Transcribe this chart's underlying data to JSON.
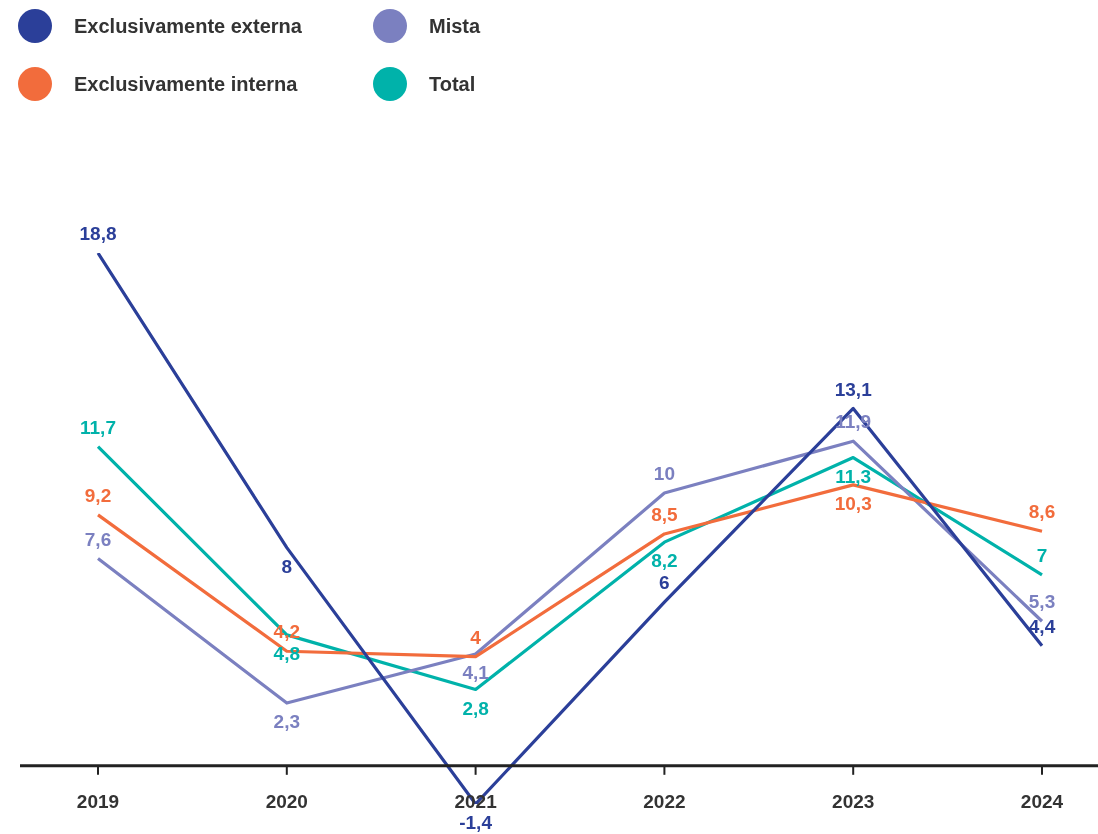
{
  "chart_data": {
    "type": "line",
    "categories": [
      "2019",
      "2020",
      "2021",
      "2022",
      "2023",
      "2024"
    ],
    "series": [
      {
        "name": "Exclusivamente externa",
        "color": "#2b3f99",
        "values": [
          18.8,
          8,
          -1.4,
          6,
          13.1,
          4.4
        ],
        "value_labels": [
          "18,8",
          "8",
          "-1,4",
          "6",
          "13,1",
          "4,4"
        ]
      },
      {
        "name": "Exclusivamente interna",
        "color": "#f26c3c",
        "values": [
          9.2,
          4.2,
          4,
          8.5,
          10.3,
          8.6
        ],
        "value_labels": [
          "9,2",
          "4,2",
          "4",
          "8,5",
          "10,3",
          "8,6"
        ]
      },
      {
        "name": "Mista",
        "color": "#7b80c0",
        "values": [
          7.6,
          2.3,
          4.1,
          10,
          11.9,
          5.3
        ],
        "value_labels": [
          "7,6",
          "2,3",
          "4,1",
          "10",
          "11,9",
          "5,3"
        ]
      },
      {
        "name": "Total",
        "color": "#00b2aa",
        "values": [
          11.7,
          4.8,
          2.8,
          8.2,
          11.3,
          7
        ],
        "value_labels": [
          "11,7",
          "4,8",
          "2,8",
          "8,2",
          "11,3",
          "7"
        ]
      }
    ],
    "legend": "top left",
    "marker": "none",
    "line_style": "solid"
  }
}
